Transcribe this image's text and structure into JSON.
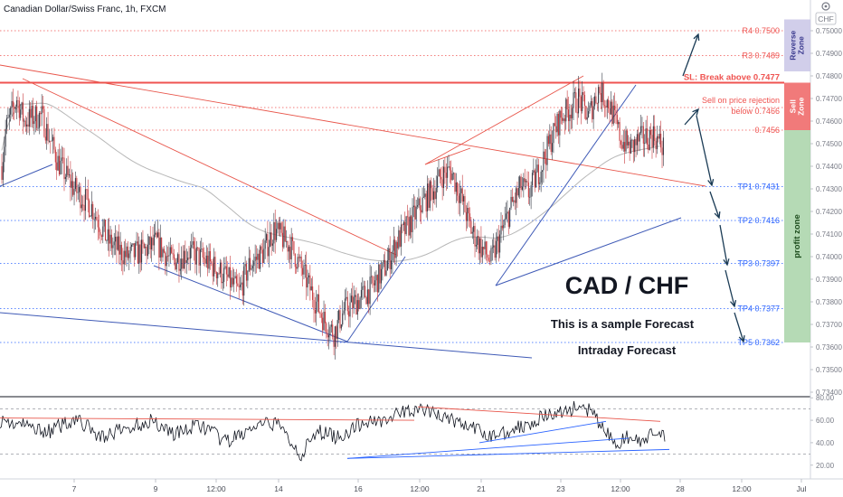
{
  "header": {
    "title": "Canadian Dollar/Swiss Franc, 1h, FXCM",
    "currency_badge": "CHF",
    "settings_icon": "gear-icon"
  },
  "colors": {
    "up": "#363a45",
    "down": "#c7383c",
    "resistance": "#ef5350",
    "support": "#2962ff",
    "support_line": "#3f5ab6",
    "trend_red": "#e8554a",
    "ma": "#b7b7b7",
    "arrow": "#1a3b55",
    "reverse_zone": "#c9c6e6",
    "sell_zone": "#ef6b6b",
    "profit_zone": "#a8d4a8"
  },
  "chart_data": {
    "type": "candlestick",
    "title": "CAD / CHF",
    "subtitle": "This is a sample Forecast",
    "subtitle2": "Intraday Forecast",
    "ylim": [
      0.734,
      0.751
    ],
    "y_ticks": [
      "0.75000",
      "0.74900",
      "0.74800",
      "0.74700",
      "0.74600",
      "0.74500",
      "0.74400",
      "0.74300",
      "0.74200",
      "0.74100",
      "0.74000",
      "0.73900",
      "0.73800",
      "0.73700",
      "0.73600",
      "0.73500",
      "0.73400"
    ],
    "x_ticks": [
      "7",
      "9",
      "12:00",
      "14",
      "16",
      "12:00",
      "21",
      "23",
      "12:00",
      "28",
      "12:00",
      "Jul"
    ],
    "levels": [
      {
        "name": "R4",
        "label": "R4 0.7500",
        "value": 0.75,
        "kind": "resistance"
      },
      {
        "name": "R3",
        "label": "R3 0.7489",
        "value": 0.7489,
        "kind": "resistance"
      },
      {
        "name": "SL",
        "label": "SL: Break above 0.7477",
        "value": 0.7477,
        "kind": "stop"
      },
      {
        "name": "Sell",
        "label": "Sell on price rejection",
        "label2": "below 0.7466",
        "value": 0.7466,
        "kind": "resistance"
      },
      {
        "name": "Entry",
        "label": "0.7456",
        "value": 0.7456,
        "kind": "resistance"
      },
      {
        "name": "TP1",
        "label": "TP1 0.7431",
        "value": 0.7431,
        "kind": "support"
      },
      {
        "name": "TP2",
        "label": "TP2 0.7416",
        "value": 0.7416,
        "kind": "support"
      },
      {
        "name": "TP3",
        "label": "TP3 0.7397",
        "value": 0.7397,
        "kind": "support"
      },
      {
        "name": "TP4",
        "label": "TP4 0.7377",
        "value": 0.7377,
        "kind": "support"
      },
      {
        "name": "TP5",
        "label": "TP5 0.7362",
        "value": 0.7362,
        "kind": "support"
      }
    ],
    "zones": [
      {
        "label": "Reverse Zone",
        "top": 0.7505,
        "bottom": 0.7482
      },
      {
        "label": "Sell Zone",
        "top": 0.7477,
        "bottom": 0.7456
      },
      {
        "label": "profit zone",
        "top": 0.7456,
        "bottom": 0.7362
      }
    ],
    "close_anchors": [
      [
        0,
        0.744
      ],
      [
        3,
        0.7456
      ],
      [
        12,
        0.747
      ],
      [
        18,
        0.746
      ],
      [
        26,
        0.7462
      ],
      [
        32,
        0.7462
      ],
      [
        45,
        0.7442
      ],
      [
        58,
        0.743
      ],
      [
        72,
        0.7422
      ],
      [
        85,
        0.7407
      ],
      [
        100,
        0.74
      ],
      [
        112,
        0.7402
      ],
      [
        124,
        0.7406
      ],
      [
        136,
        0.7398
      ],
      [
        150,
        0.7402
      ],
      [
        164,
        0.7398
      ],
      [
        178,
        0.7392
      ],
      [
        190,
        0.7384
      ],
      [
        198,
        0.7396
      ],
      [
        210,
        0.7402
      ],
      [
        218,
        0.7412
      ],
      [
        232,
        0.7404
      ],
      [
        242,
        0.7392
      ],
      [
        250,
        0.7382
      ],
      [
        258,
        0.7372
      ],
      [
        266,
        0.7366
      ],
      [
        274,
        0.7376
      ],
      [
        286,
        0.7381
      ],
      [
        296,
        0.7386
      ],
      [
        306,
        0.7394
      ],
      [
        316,
        0.7406
      ],
      [
        326,
        0.7414
      ],
      [
        336,
        0.7423
      ],
      [
        346,
        0.743
      ],
      [
        352,
        0.7436
      ],
      [
        360,
        0.7438
      ],
      [
        368,
        0.7426
      ],
      [
        376,
        0.7412
      ],
      [
        384,
        0.7404
      ],
      [
        392,
        0.7398
      ],
      [
        400,
        0.741
      ],
      [
        408,
        0.7422
      ],
      [
        416,
        0.7431
      ],
      [
        422,
        0.7428
      ],
      [
        432,
        0.744
      ],
      [
        440,
        0.7452
      ],
      [
        448,
        0.7462
      ],
      [
        456,
        0.7466
      ],
      [
        462,
        0.747
      ],
      [
        470,
        0.7462
      ],
      [
        478,
        0.7474
      ],
      [
        486,
        0.7468
      ],
      [
        490,
        0.7462
      ],
      [
        496,
        0.7452
      ],
      [
        504,
        0.7448
      ],
      [
        512,
        0.7452
      ],
      [
        522,
        0.7454
      ],
      [
        530,
        0.7448
      ]
    ],
    "rsi": {
      "ylim": [
        15,
        85
      ],
      "ticks": [
        "80.00",
        "60.00",
        "40.00",
        "20.00"
      ],
      "levels": [
        70,
        30
      ],
      "anchors": [
        [
          0,
          60
        ],
        [
          20,
          55
        ],
        [
          40,
          50
        ],
        [
          60,
          62
        ],
        [
          80,
          45
        ],
        [
          100,
          52
        ],
        [
          120,
          60
        ],
        [
          140,
          48
        ],
        [
          160,
          56
        ],
        [
          180,
          40
        ],
        [
          200,
          52
        ],
        [
          220,
          58
        ],
        [
          240,
          30
        ],
        [
          255,
          50
        ],
        [
          270,
          45
        ],
        [
          290,
          58
        ],
        [
          310,
          62
        ],
        [
          330,
          70
        ],
        [
          350,
          65
        ],
        [
          370,
          56
        ],
        [
          390,
          46
        ],
        [
          410,
          52
        ],
        [
          430,
          62
        ],
        [
          445,
          66
        ],
        [
          460,
          72
        ],
        [
          470,
          68
        ],
        [
          480,
          55
        ],
        [
          490,
          38
        ],
        [
          500,
          45
        ],
        [
          510,
          40
        ],
        [
          520,
          47
        ],
        [
          530,
          44
        ]
      ]
    }
  }
}
